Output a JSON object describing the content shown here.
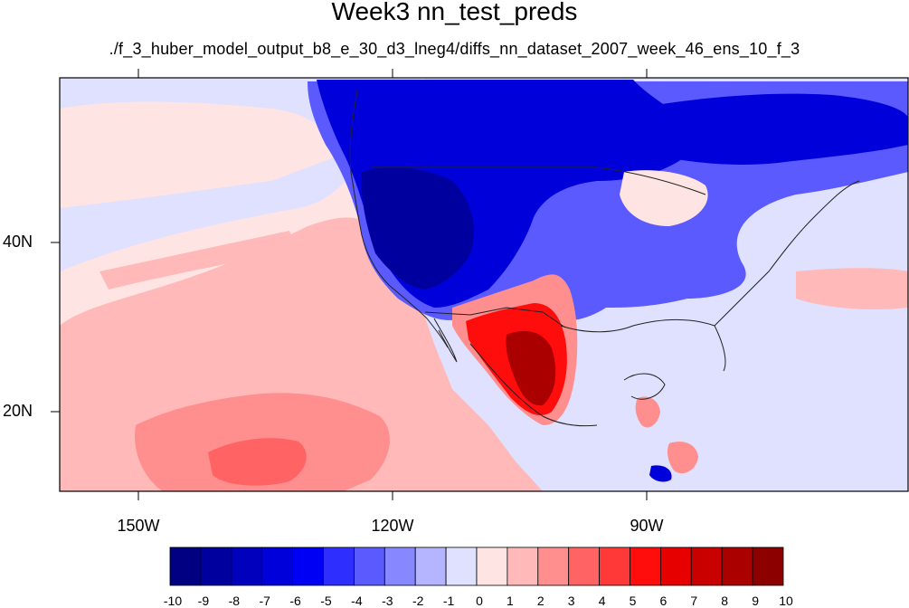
{
  "title": "Week3 nn_test_preds",
  "subtitle": "./f_3_huber_model_output_b8_e_30_d3_lneg4/diffs_nn_dataset_2007_week_46_ens_10_f_3",
  "lat_labels": [
    "40N",
    "20N"
  ],
  "lon_labels": [
    "150W",
    "120W",
    "90W"
  ],
  "colorbar": {
    "labels": [
      "-10",
      "-9",
      "-8",
      "-7",
      "-6",
      "-5",
      "-4",
      "-3",
      "-2",
      "-1",
      "0",
      "1",
      "2",
      "3",
      "4",
      "5",
      "6",
      "7",
      "8",
      "9",
      "10"
    ],
    "colors": [
      "#000080",
      "#00009e",
      "#0000bd",
      "#0000db",
      "#0000f5",
      "#2e2eff",
      "#5a5aff",
      "#8787ff",
      "#b4b4ff",
      "#e0e0ff",
      "#ffe4e4",
      "#ffb9b9",
      "#ff8e8e",
      "#ff6363",
      "#ff3838",
      "#ff0d0d",
      "#e60000",
      "#c80000",
      "#aa0000",
      "#8c0000"
    ]
  },
  "map_colors": {
    "background_light_blue": "#e0e0ff",
    "background_light_pink": "#ffe4e4",
    "ocean_pink": "#ffb9b9",
    "ocean_salmon": "#ff8e8e",
    "ocean_red": "#ff6363",
    "blue_medium": "#5a5aff",
    "blue_deep": "#0000db",
    "blue_darkest": "#00009e",
    "mexico_red": "#ff0d0d",
    "mexico_darkred": "#aa0000"
  }
}
